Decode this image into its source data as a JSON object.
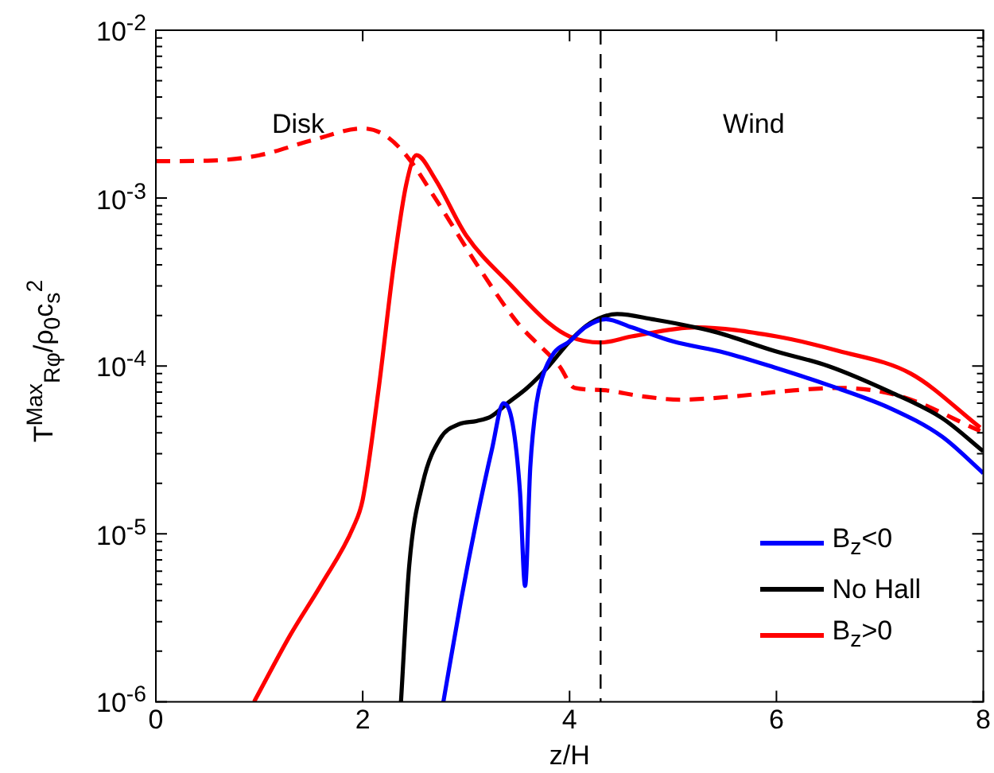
{
  "chart_data": {
    "type": "line",
    "xlabel": "z/H",
    "ylabel": "T$^{Max}$$_{Rφ}$/ρ$_{0}$c$_{s}$$^{2}$",
    "xlim": [
      0,
      8
    ],
    "xticks": [
      0,
      2,
      4,
      6,
      8
    ],
    "ylim": [
      1e-06,
      0.01
    ],
    "yticks": [
      {
        "value": 1e-06,
        "label": "10$^{-6}$"
      },
      {
        "value": 1e-05,
        "label": "10$^{-5}$"
      },
      {
        "value": 0.0001,
        "label": "10$^{-4}$"
      },
      {
        "value": 0.001,
        "label": "10$^{-3}$"
      },
      {
        "value": 0.01,
        "label": "10$^{-2}$"
      }
    ],
    "log": "y",
    "grid": false,
    "legend": "bottom right",
    "marker": "none",
    "annotations": [
      "Disk",
      "Wind"
    ],
    "ref_lines": [
      {
        "axis": "x",
        "value": 4.3,
        "color": "#000000",
        "line_style": "dashed"
      }
    ],
    "series": [
      {
        "name": "B$_{z}$<0",
        "color": "#0000ff",
        "line_style": "solid",
        "x": [
          2.78,
          2.95,
          3.1,
          3.25,
          3.36,
          3.45,
          3.52,
          3.57,
          3.62,
          3.68,
          3.74,
          3.85,
          4.0,
          4.15,
          4.35,
          4.6,
          5.0,
          5.5,
          5.98,
          6.5,
          7.1,
          7.6,
          8.0
        ],
        "values": [
          1e-06,
          4e-06,
          1.2e-05,
          3.2e-05,
          6e-05,
          4.5e-05,
          1.8e-05,
          4.9e-06,
          2.5e-05,
          6e-05,
          8.7e-05,
          0.00012,
          0.00014,
          0.00017,
          0.00019,
          0.00017,
          0.00014,
          0.00012,
          9.8e-05,
          7.7e-05,
          5.6e-05,
          3.8e-05,
          2.3e-05
        ]
      },
      {
        "name": "No Hall",
        "color": "#000000",
        "line_style": "solid",
        "x": [
          2.37,
          2.45,
          2.58,
          2.75,
          2.93,
          3.1,
          3.24,
          3.4,
          3.59,
          3.8,
          4.0,
          4.2,
          4.46,
          4.8,
          5.4,
          5.98,
          6.5,
          7.1,
          7.6,
          8.0
        ],
        "values": [
          1e-06,
          6.5e-06,
          2e-05,
          3.7e-05,
          4.5e-05,
          4.7e-05,
          5e-05,
          6e-05,
          7.4e-05,
          0.0001,
          0.00014,
          0.00018,
          0.000204,
          0.00019,
          0.00016,
          0.000123,
          0.0001,
          7e-05,
          4.9e-05,
          3.1e-05
        ]
      },
      {
        "name": "B$_{z}$>0",
        "color": "#ff0000",
        "line_style": "solid",
        "x": [
          0.95,
          1.3,
          1.6,
          1.91,
          2.0,
          2.15,
          2.3,
          2.42,
          2.52,
          2.7,
          3.0,
          3.44,
          3.8,
          4.0,
          4.3,
          4.6,
          5.22,
          6.0,
          6.6,
          7.3,
          7.97
        ],
        "values": [
          1e-06,
          2.5e-06,
          5e-06,
          1.1e-05,
          1.6e-05,
          7e-05,
          0.0004,
          0.0012,
          0.0018,
          0.0013,
          0.0006,
          0.0003,
          0.00018,
          0.00015,
          0.000138,
          0.00015,
          0.00017,
          0.00015,
          0.000123,
          9e-05,
          4.3e-05
        ]
      },
      {
        "color": "#ff0000",
        "line_style": "dashed",
        "x": [
          0,
          0.5,
          1.0,
          1.5,
          2.0,
          2.2,
          2.42,
          2.7,
          3.13,
          3.5,
          3.9,
          4.05,
          4.3,
          4.7,
          5.07,
          5.6,
          6.1,
          6.6,
          7.2,
          7.97
        ],
        "values": [
          0.00166,
          0.00167,
          0.0018,
          0.0022,
          0.0026,
          0.0024,
          0.0018,
          0.001,
          0.00038,
          0.00018,
          0.0001,
          7.4e-05,
          7.2e-05,
          6.6e-05,
          6.3e-05,
          6.6e-05,
          7.1e-05,
          7.4e-05,
          6.6e-05,
          4.1e-05
        ]
      }
    ]
  }
}
